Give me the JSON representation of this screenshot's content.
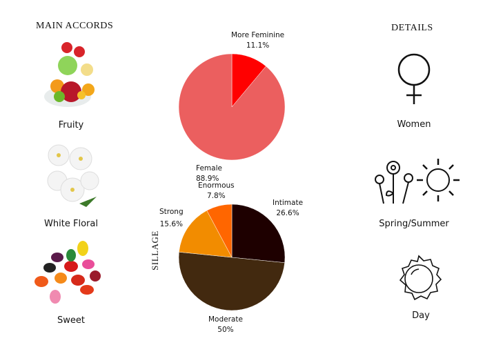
{
  "left": {
    "title": "MAIN ACCORDS",
    "accords": [
      {
        "label": "Fruity",
        "icon": "fruit-bowl-image"
      },
      {
        "label": "White Floral",
        "icon": "jasmine-flower-image"
      },
      {
        "label": "Sweet",
        "icon": "jelly-beans-image"
      }
    ]
  },
  "right": {
    "title": "DETAILS",
    "items": [
      {
        "label": "Women",
        "icon": "venus-icon"
      },
      {
        "label": "Spring/Summer",
        "icon": "flowers-sun-icon"
      },
      {
        "label": "Day",
        "icon": "sun-icon"
      }
    ]
  },
  "chart_data": [
    {
      "type": "pie",
      "title": "",
      "slices": [
        {
          "label": "More Feminine",
          "value": 11.1,
          "text": "11.1%",
          "color": "#ff0000"
        },
        {
          "label": "Female",
          "value": 88.9,
          "text": "88.9%",
          "color": "#eb5f5f"
        }
      ]
    },
    {
      "type": "pie",
      "title": "SILLAGE",
      "slices": [
        {
          "label": "Intimate",
          "value": 26.6,
          "text": "26.6%",
          "color": "#1e0000"
        },
        {
          "label": "Moderate",
          "value": 50,
          "text": "50%",
          "color": "#42290f"
        },
        {
          "label": "Strong",
          "value": 15.6,
          "text": "15.6%",
          "color": "#f28c00"
        },
        {
          "label": "Enormous",
          "value": 7.8,
          "text": "7.8%",
          "color": "#ff6600"
        }
      ]
    }
  ]
}
